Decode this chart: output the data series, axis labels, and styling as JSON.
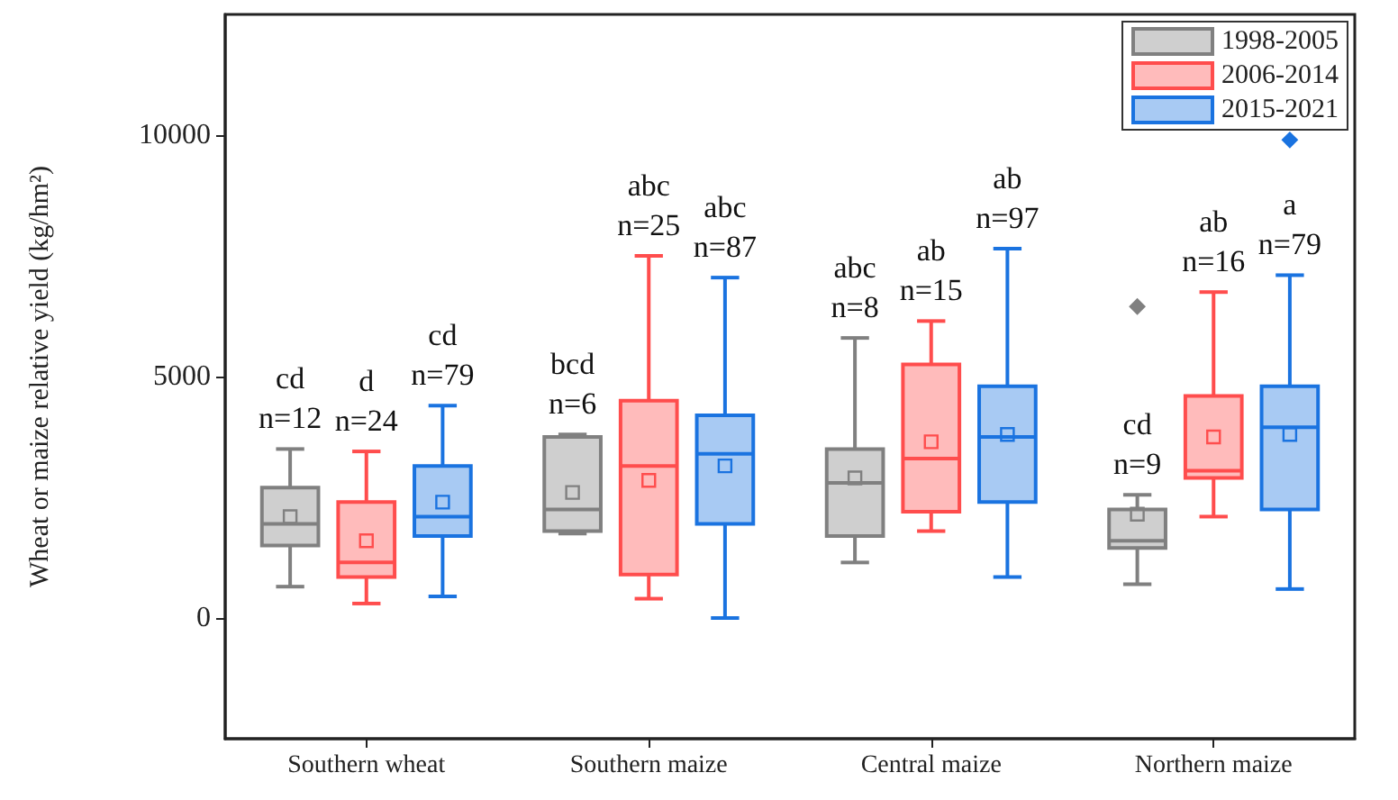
{
  "chart_data": {
    "type": "box",
    "ylabel": "Wheat or maize relative yield (kg/hm²)",
    "categories": [
      "Southern wheat",
      "Southern maize",
      "Central maize",
      "Northern maize"
    ],
    "ylim": [
      -2500,
      12500
    ],
    "yticks": [
      0,
      5000,
      10000
    ],
    "grid": false,
    "legend": "top right",
    "marker": "square",
    "series": [
      {
        "name": "1998-2005",
        "color": "#808080",
        "boxes": [
          {
            "low": 650,
            "q1": 1500,
            "median": 1950,
            "q3": 2700,
            "high": 3500,
            "mean": 2100
          },
          {
            "low": 1750,
            "q1": 1800,
            "median": 2250,
            "q3": 3750,
            "high": 3800,
            "mean": 2600
          },
          {
            "low": 1150,
            "q1": 1700,
            "median": 2800,
            "q3": 3500,
            "high": 5800,
            "mean": 2900
          },
          {
            "low": 700,
            "q1": 1450,
            "median": 1600,
            "q3": 2250,
            "high": 2550,
            "mean": 2150,
            "outliers": [
              6450
            ]
          }
        ]
      },
      {
        "name": "2006-2014",
        "color": "#ff4d4d",
        "boxes": [
          {
            "low": 300,
            "q1": 850,
            "median": 1150,
            "q3": 2400,
            "high": 3450,
            "mean": 1600
          },
          {
            "low": 400,
            "q1": 900,
            "median": 3150,
            "q3": 4500,
            "high": 7500,
            "mean": 2850
          },
          {
            "low": 1800,
            "q1": 2200,
            "median": 3300,
            "q3": 5250,
            "high": 6150,
            "mean": 3650
          },
          {
            "low": 2100,
            "q1": 2900,
            "median": 3050,
            "q3": 4600,
            "high": 6750,
            "mean": 3750
          }
        ]
      },
      {
        "name": "2015-2021",
        "color": "#1a73e0",
        "boxes": [
          {
            "low": 450,
            "q1": 1700,
            "median": 2100,
            "q3": 3150,
            "high": 4400,
            "mean": 2400
          },
          {
            "low": 0,
            "q1": 1950,
            "median": 3400,
            "q3": 4200,
            "high": 7050,
            "mean": 3150
          },
          {
            "low": 850,
            "q1": 2400,
            "median": 3750,
            "q3": 4800,
            "high": 7650,
            "mean": 3800
          },
          {
            "low": 600,
            "q1": 2250,
            "median": 3950,
            "q3": 4800,
            "high": 7100,
            "mean": 3800,
            "outliers": [
              9900
            ]
          }
        ]
      }
    ],
    "annotations": [
      "cd\nn=12",
      "d\nn=24",
      "cd\nn=79",
      "bcd\nn=6",
      "abc\nn=25",
      "abc\nn=87",
      "abc\nn=8",
      "ab\nn=15",
      "ab\nn=97",
      "cd\nn=9",
      "ab\nn=16",
      "a\nn=79"
    ]
  }
}
